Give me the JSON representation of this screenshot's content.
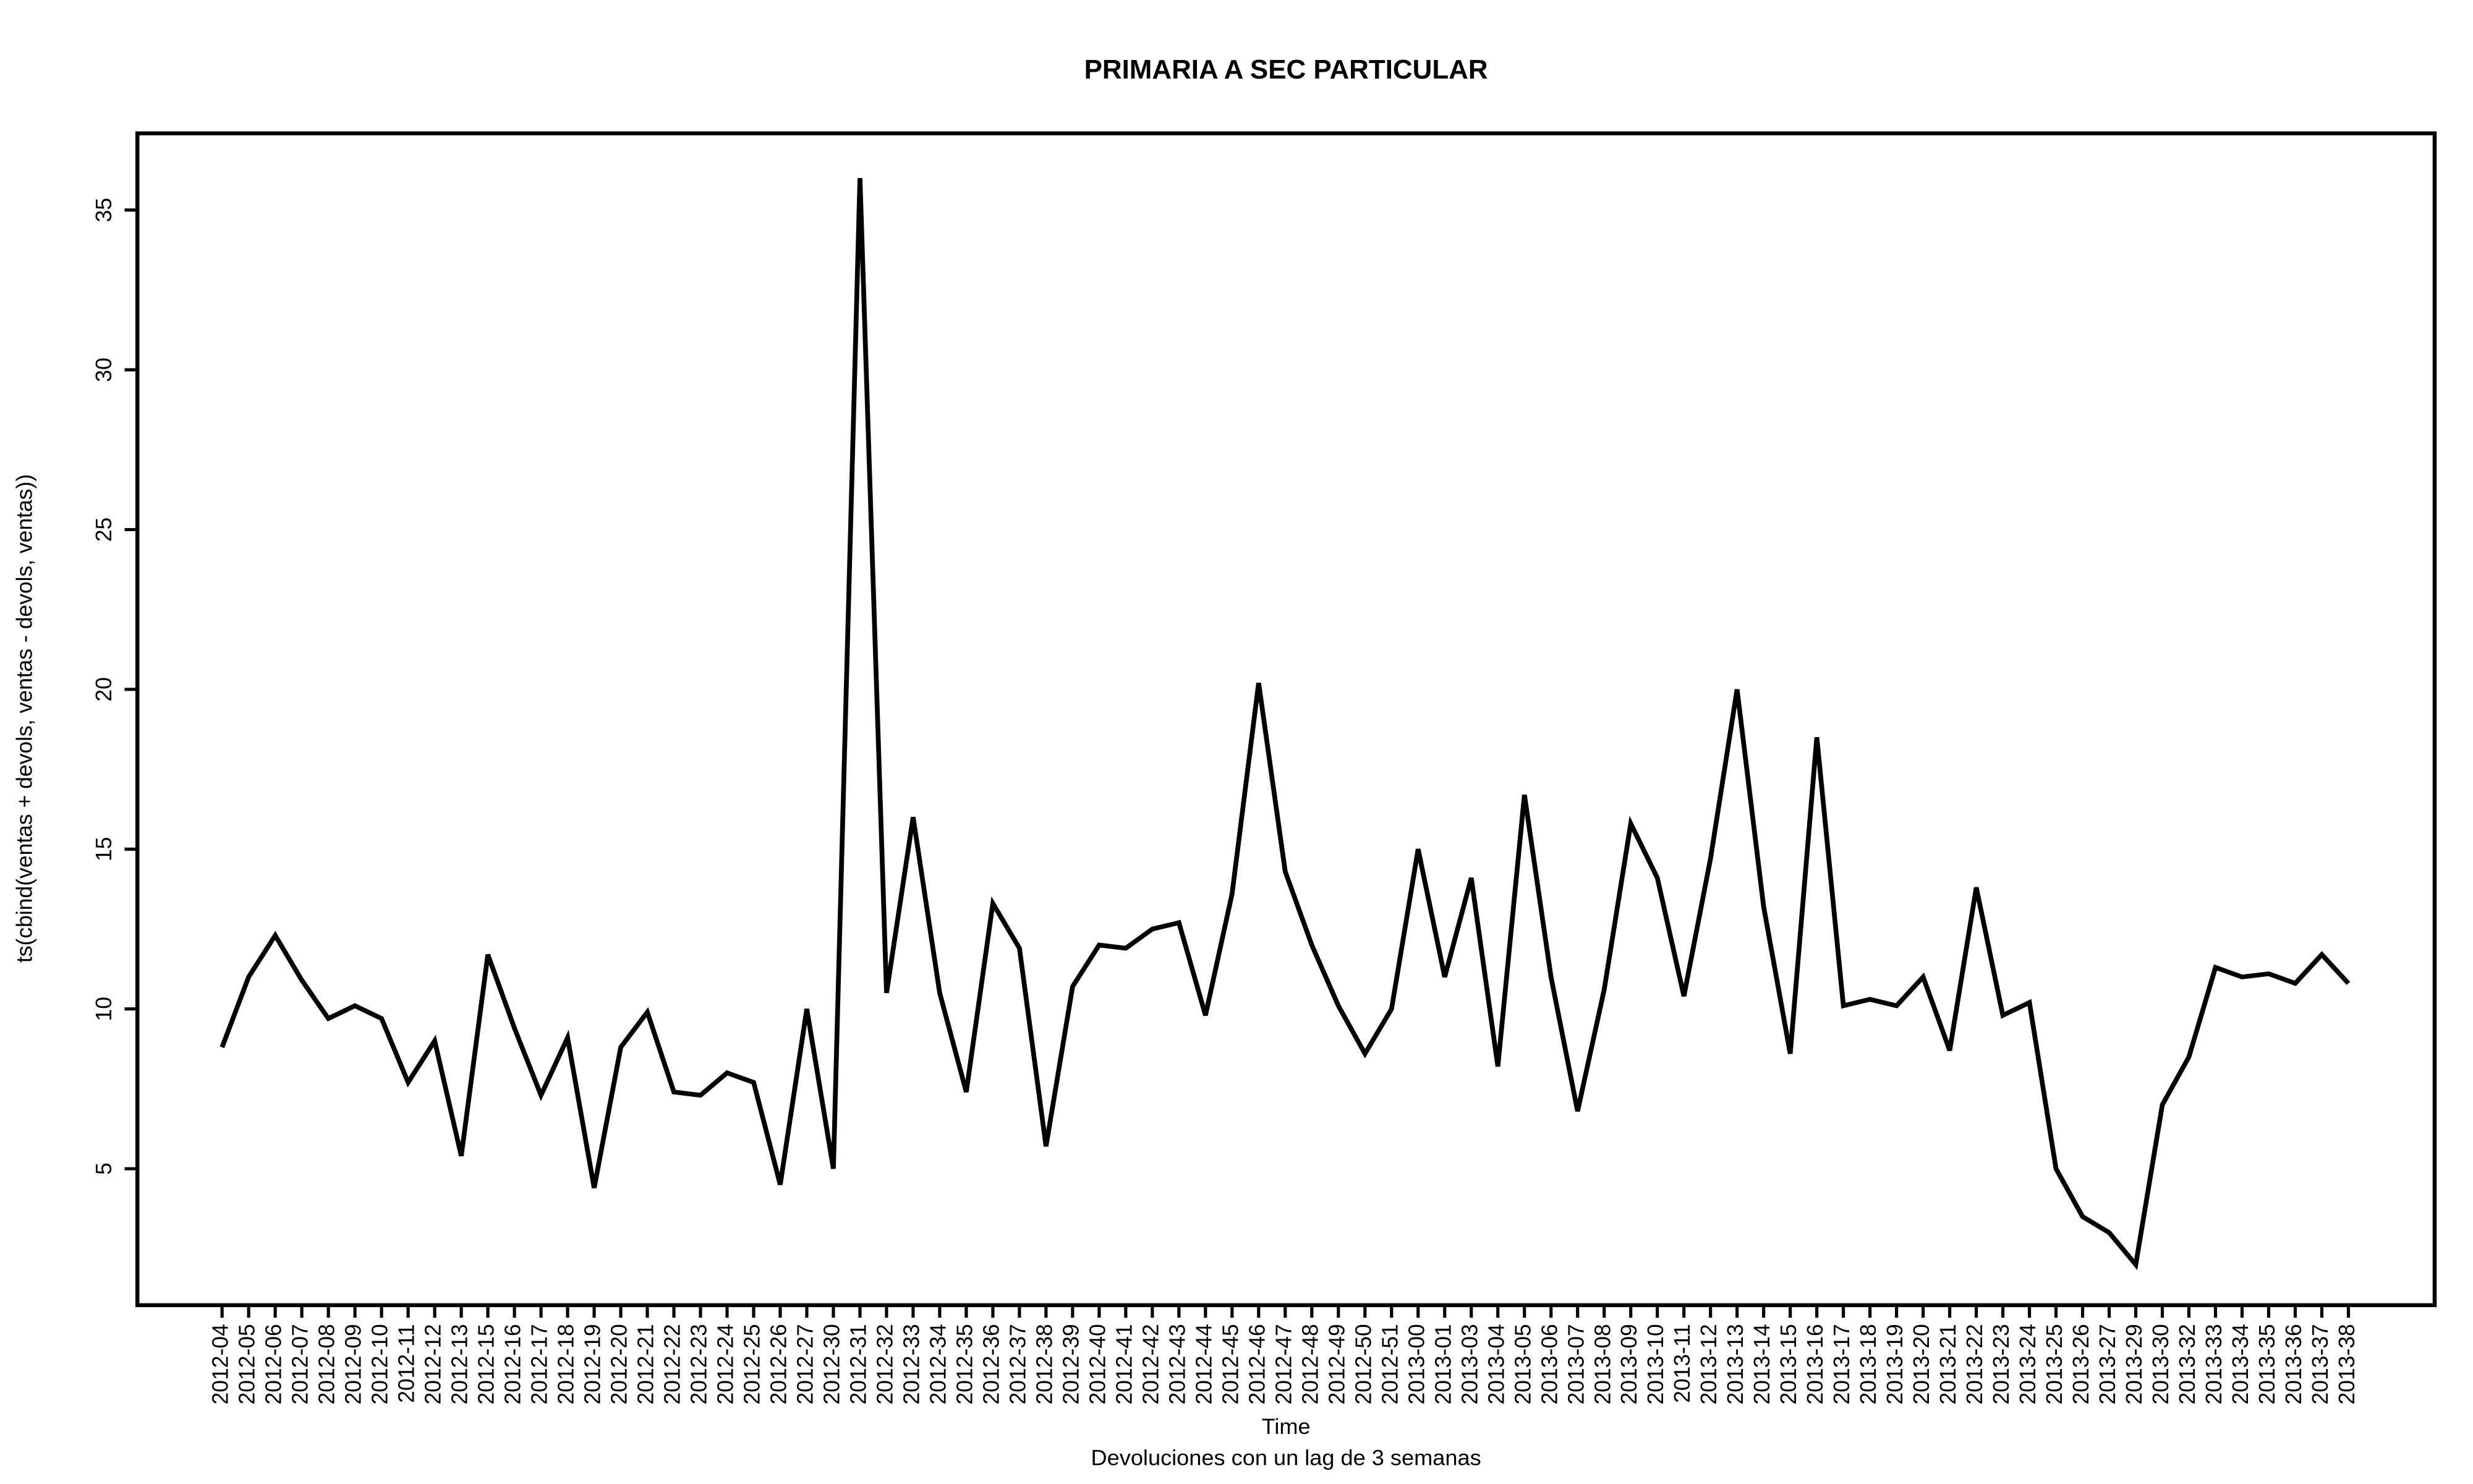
{
  "chart_data": {
    "type": "line",
    "title": "PRIMARIA A SEC PARTICULAR",
    "x_label": "Time",
    "subtitle": "Devoluciones con un lag de 3 semanas",
    "y_label": "ts(cbind(ventas + devols, ventas - devols, ventas))",
    "categories": [
      "2012-04",
      "2012-05",
      "2012-06",
      "2012-07",
      "2012-08",
      "2012-09",
      "2012-10",
      "2012-11",
      "2012-12",
      "2012-13",
      "2012-15",
      "2012-16",
      "2012-17",
      "2012-18",
      "2012-19",
      "2012-20",
      "2012-21",
      "2012-22",
      "2012-23",
      "2012-24",
      "2012-25",
      "2012-26",
      "2012-27",
      "2012-30",
      "2012-31",
      "2012-32",
      "2012-33",
      "2012-34",
      "2012-35",
      "2012-36",
      "2012-37",
      "2012-38",
      "2012-39",
      "2012-40",
      "2012-41",
      "2012-42",
      "2012-43",
      "2012-44",
      "2012-45",
      "2012-46",
      "2012-47",
      "2012-48",
      "2012-49",
      "2012-50",
      "2012-51",
      "2013-00",
      "2013-01",
      "2013-03",
      "2013-04",
      "2013-05",
      "2013-06",
      "2013-07",
      "2013-08",
      "2013-09",
      "2013-10",
      "2013-11",
      "2013-12",
      "2013-13",
      "2013-14",
      "2013-15",
      "2013-16",
      "2013-17",
      "2013-18",
      "2013-19",
      "2013-20",
      "2013-21",
      "2013-22",
      "2013-23",
      "2013-24",
      "2013-25",
      "2013-26",
      "2013-27",
      "2013-29",
      "2013-30",
      "2013-32",
      "2013-33",
      "2013-34",
      "2013-35",
      "2013-36",
      "2013-37",
      "2013-38"
    ],
    "values": [
      8.8,
      11.0,
      12.3,
      10.9,
      9.7,
      10.1,
      9.7,
      7.7,
      9.0,
      5.4,
      11.7,
      9.4,
      7.3,
      9.1,
      4.4,
      8.8,
      9.9,
      7.4,
      7.3,
      8.0,
      7.7,
      4.5,
      10.0,
      5.0,
      36.0,
      10.5,
      16.0,
      10.5,
      7.4,
      13.3,
      11.9,
      5.7,
      10.7,
      12.0,
      11.9,
      12.5,
      12.7,
      9.8,
      13.6,
      20.2,
      14.3,
      12.0,
      10.1,
      8.6,
      10.0,
      15.0,
      11.0,
      14.1,
      8.2,
      16.7,
      11.0,
      6.8,
      10.6,
      15.8,
      14.1,
      10.4,
      14.7,
      20.0,
      13.2,
      8.6,
      18.5,
      10.1,
      10.3,
      10.1,
      11.0,
      8.7,
      13.8,
      9.8,
      10.2,
      5.0,
      3.5,
      3.0,
      2.0,
      7.0,
      8.5,
      11.3,
      11.0,
      11.1,
      10.8,
      11.7,
      10.8
    ],
    "color": "#000000",
    "ylim": [
      0.73,
      37.4
    ],
    "yticks": [
      5,
      10,
      15,
      20,
      25,
      30,
      35
    ],
    "grid": false
  }
}
